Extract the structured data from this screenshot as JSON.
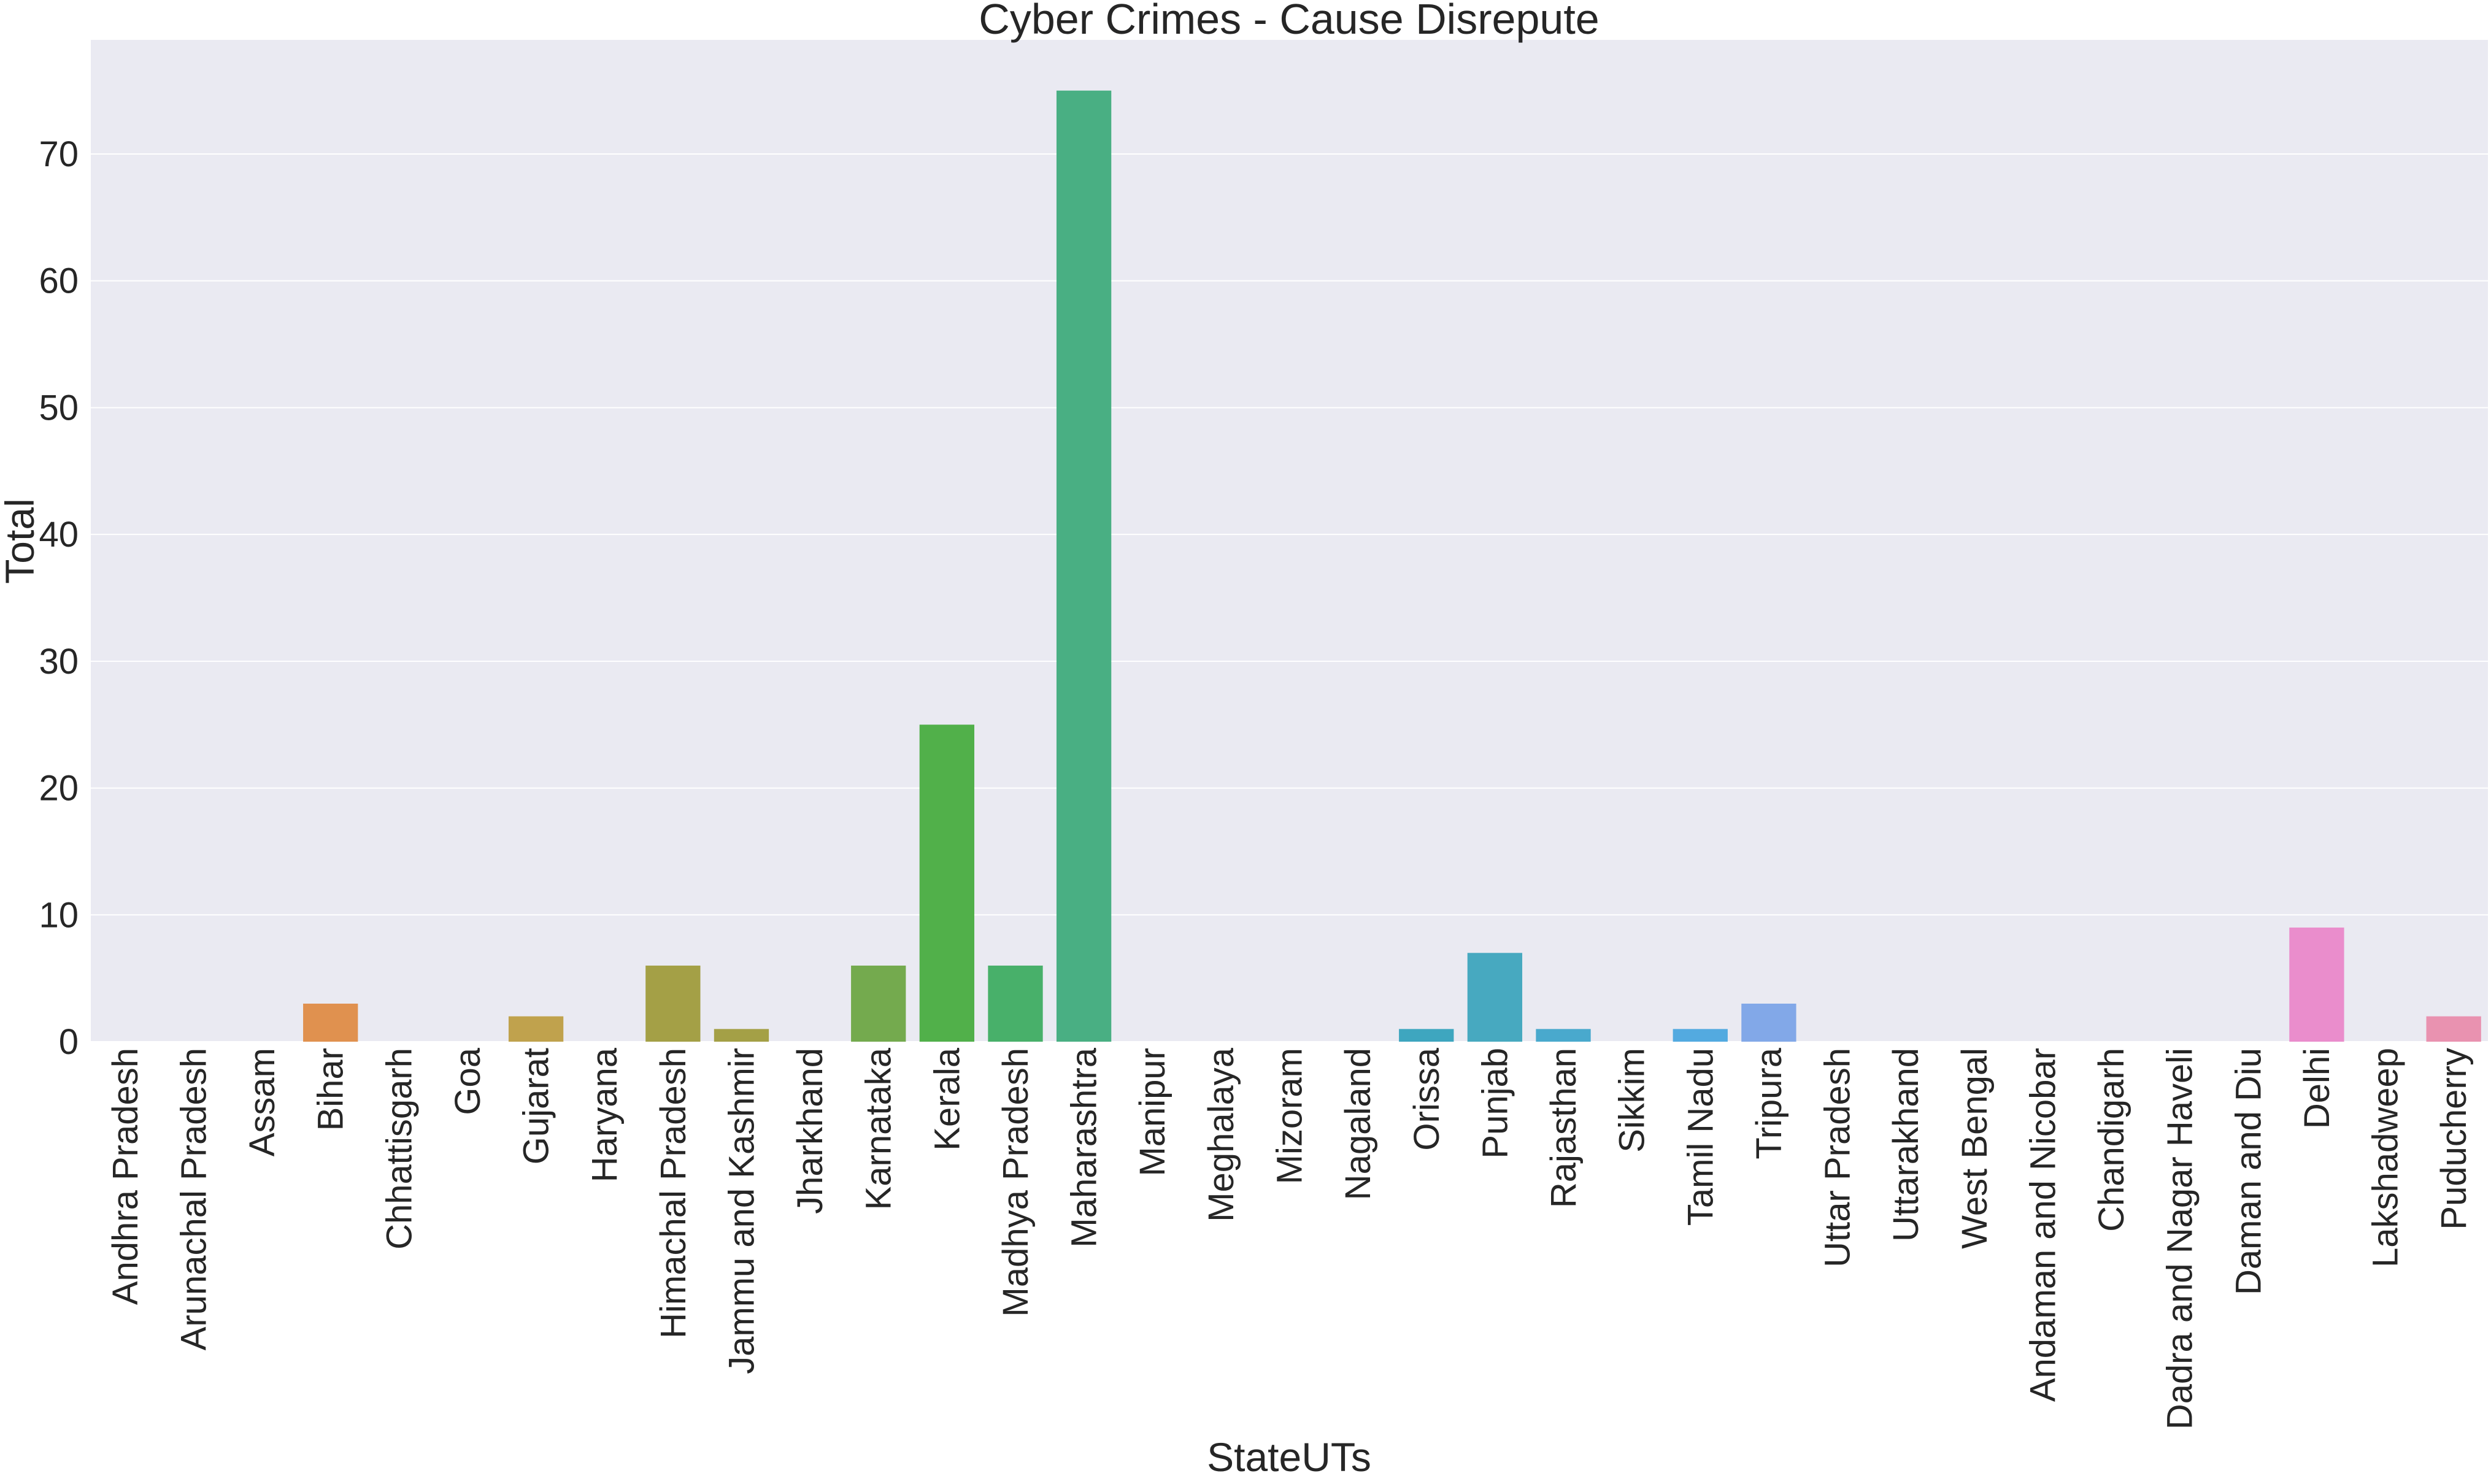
{
  "chart_data": {
    "type": "bar",
    "title": "Cyber Crimes - Cause Disrepute",
    "xlabel": "StateUTs",
    "ylabel": "Total",
    "ylim": [
      0,
      79
    ],
    "yticks": [
      0,
      10,
      20,
      30,
      40,
      50,
      60,
      70
    ],
    "grid": true,
    "categories": [
      "Andhra Pradesh",
      "Arunachal Pradesh",
      "Assam",
      "Bihar",
      "Chhattisgarh",
      "Goa",
      "Gujarat",
      "Haryana",
      "Himachal Pradesh",
      "Jammu and Kashmir",
      "Jharkhand",
      "Karnataka",
      "Kerala",
      "Madhya Pradesh",
      "Maharashtra",
      "Manipur",
      "Meghalaya",
      "Mizoram",
      "Nagaland",
      "Orissa",
      "Punjab",
      "Rajasthan",
      "Sikkim",
      "Tamil Nadu",
      "Tripura",
      "Uttar Pradesh",
      "Uttarakhand",
      "West Bengal",
      "Andaman and Nicobar",
      "Chandigarh",
      "Dadra and Nagar Haveli",
      "Daman and Diu",
      "Delhi",
      "Lakshadweep",
      "Puducherry"
    ],
    "values": [
      0,
      0,
      0,
      3,
      0,
      0,
      2,
      0,
      6,
      1,
      0,
      6,
      25,
      6,
      75,
      0,
      0,
      0,
      0,
      1,
      7,
      1,
      0,
      1,
      3,
      0,
      0,
      0,
      0,
      0,
      0,
      0,
      9,
      0,
      2
    ],
    "colors": [
      "#f77189",
      "#f7754f",
      "#dc8932",
      "#e0914f",
      "#b29631",
      "#a8a031",
      "#c0a24d",
      "#8ba631",
      "#a4a046",
      "#a4a046",
      "#50b131",
      "#74aa4e",
      "#51b04a",
      "#48b06a",
      "#49af83",
      "#36ada4",
      "#37abb1",
      "#39a7c0",
      "#3aa3c6",
      "#3ea6bf",
      "#47a9c0",
      "#49a9cd",
      "#4aa1dc",
      "#53aae0",
      "#82a8e8",
      "#a48cf4",
      "#b88cf4",
      "#cc7af4",
      "#f561dd",
      "#f566c9",
      "#f56ab5",
      "#f56ea2",
      "#ea8dcc",
      "#f5718d",
      "#e992b0"
    ],
    "background": "#eaeaf2",
    "gridcolor": "#ffffff"
  }
}
